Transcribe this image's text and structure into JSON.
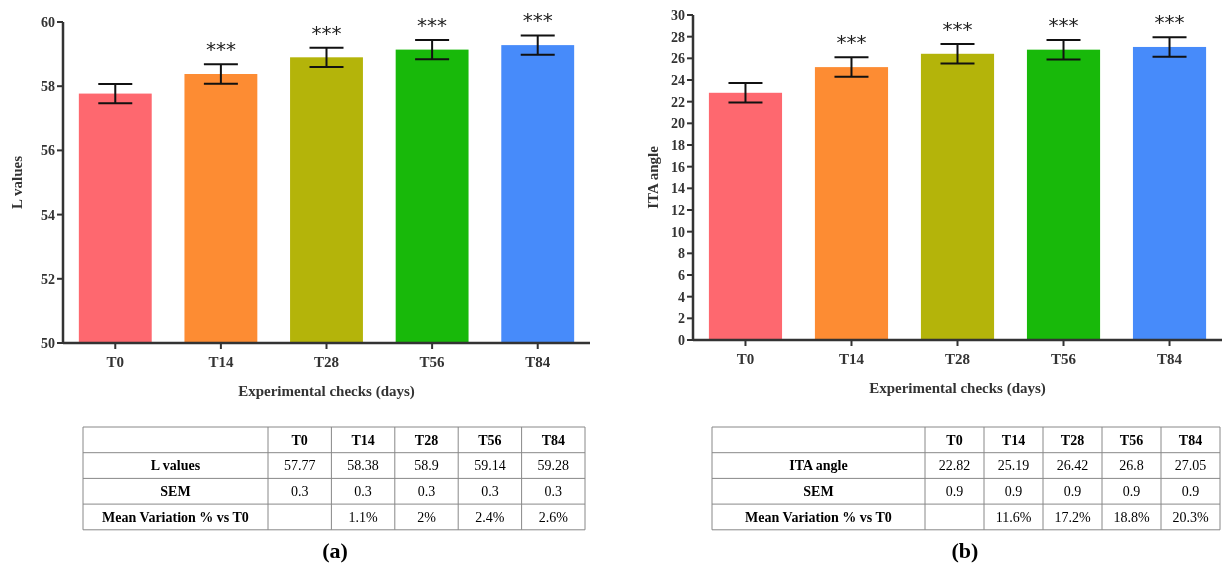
{
  "chart_data": [
    {
      "type": "bar",
      "categories": [
        "T0",
        "T14",
        "T28",
        "T56",
        "T84"
      ],
      "values": [
        57.77,
        58.38,
        58.9,
        59.14,
        59.28
      ],
      "errors": [
        0.3,
        0.3,
        0.3,
        0.3,
        0.3
      ],
      "colors": [
        "#fe686f",
        "#fd8c33",
        "#b4b40a",
        "#18b90a",
        "#478bfa"
      ],
      "ylim": [
        50,
        60
      ],
      "yticks": [
        50,
        52,
        54,
        56,
        58,
        60
      ],
      "xlabel": "Experimental checks (days)",
      "ylabel": "L values",
      "annotations": [
        {
          "text": "***",
          "x": "T14",
          "y": 58.68
        },
        {
          "text": "***",
          "x": "T28",
          "y": 59.2
        },
        {
          "text": "***",
          "x": "T56",
          "y": 59.44
        },
        {
          "text": "***",
          "x": "T84",
          "y": 59.58
        },
        "57.77",
        "58.38",
        "58.9",
        "59.14",
        "59.28",
        "SEM",
        "0.3",
        "0.3",
        "0.3",
        "0.3",
        "0.3",
        "Mean Variation % vs T0",
        "1.1%",
        "2%",
        "2.4%",
        "2.6%",
        "(a)"
      ]
    },
    {
      "type": "bar",
      "categories": [
        "T0",
        "T14",
        "T28",
        "T56",
        "T84"
      ],
      "values": [
        22.82,
        25.19,
        26.42,
        26.8,
        27.05
      ],
      "errors": [
        0.9,
        0.9,
        0.9,
        0.9,
        0.9
      ],
      "colors": [
        "#fe686f",
        "#fd8c33",
        "#b4b40a",
        "#18b90a",
        "#478bfa"
      ],
      "ylim": [
        0,
        30
      ],
      "yticks": [
        0,
        2,
        4,
        6,
        8,
        10,
        12,
        14,
        16,
        18,
        20,
        22,
        24,
        26,
        28,
        30
      ],
      "xlabel": "Experimental checks (days)",
      "ylabel": "ITA angle",
      "annotations": [
        {
          "text": "***",
          "x": "T14",
          "y": 26.09
        },
        {
          "text": "***",
          "x": "T28",
          "y": 27.32
        },
        {
          "text": "***",
          "x": "T56",
          "y": 27.7
        },
        {
          "text": "***",
          "x": "T84",
          "y": 27.95
        },
        "22.82",
        "25.19",
        "26.42",
        "26.8",
        "27.05",
        "SEM",
        "0.9",
        "0.9",
        "0.9",
        "0.9",
        "0.9",
        "Mean Variation % vs T0",
        "11.6%",
        "17.2%",
        "18.8%",
        "20.3%",
        "(b)"
      ]
    }
  ]
}
